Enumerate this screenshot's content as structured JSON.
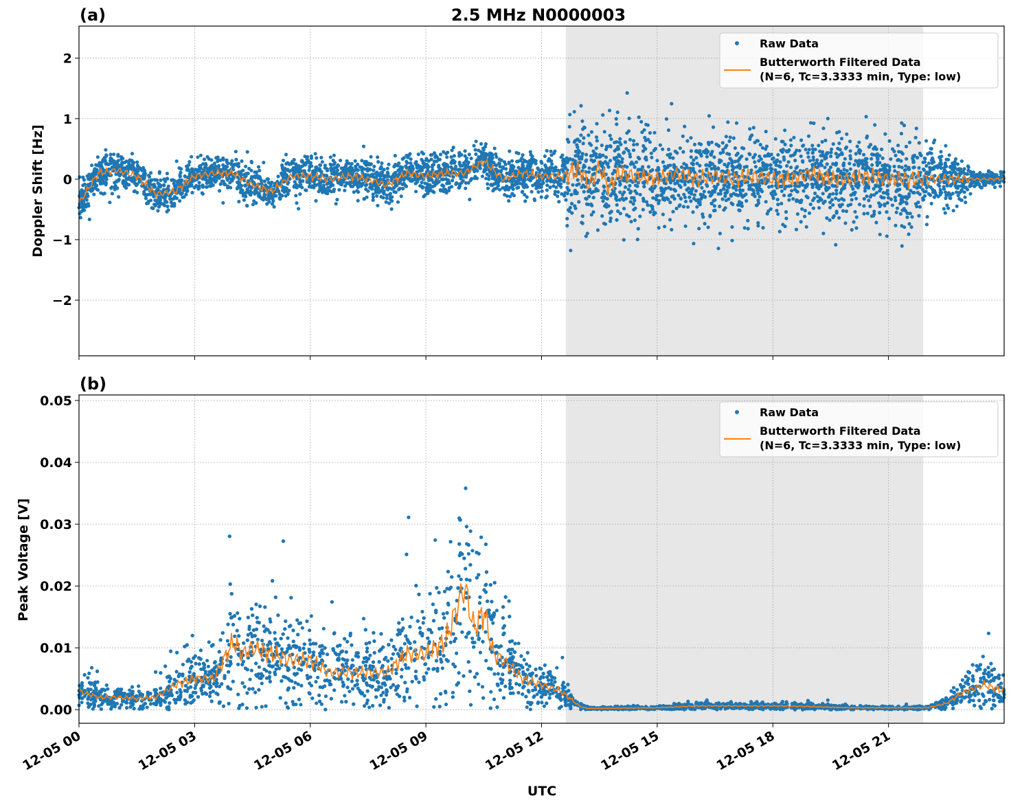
{
  "chart_data": [
    {
      "type": "scatter",
      "panel_label": "(a)",
      "title": "2.5 MHz N0000003",
      "xlabel": "",
      "ylabel": "Doppler Shift [Hz]",
      "xlim_hours": [
        0,
        24
      ],
      "ylim": [
        -2.92,
        2.53
      ],
      "yticks": [
        -2,
        -1,
        0,
        1,
        2
      ],
      "ytick_labels": [
        "−2",
        "−1",
        "0",
        "1",
        "2"
      ],
      "xticks_hours": [
        0,
        3,
        6,
        9,
        12,
        15,
        18,
        21
      ],
      "grid": true,
      "shaded_region_hours": [
        12.63,
        21.9
      ],
      "legend": {
        "placement": "top-right",
        "entries": [
          "Raw Data",
          "Butterworth Filtered Data\n(N=6, Tc=3.3333 min, Type: low)"
        ],
        "line1": "Butterworth Filtered Data",
        "line2": "(N=6, Tc=3.3333 min, Type: low)"
      },
      "series": [
        {
          "name": "Butterworth Filtered Data",
          "color": "#ff7f0e",
          "x": [
            0,
            0.5,
            1,
            1.5,
            2,
            2.5,
            3,
            3.5,
            4,
            4.5,
            5,
            5.5,
            6,
            6.5,
            7,
            7.5,
            8,
            8.5,
            9,
            9.5,
            10,
            10.5,
            11,
            11.5,
            12,
            12.5,
            13,
            13.25,
            13.5,
            13.75,
            14,
            14.5,
            15,
            15.5,
            16,
            16.5,
            17,
            17.5,
            18,
            18.5,
            19,
            19.5,
            20,
            20.5,
            21,
            21.5,
            22,
            22.5,
            23,
            23.5,
            24
          ],
          "y": [
            -0.4,
            0.1,
            0.15,
            0.05,
            -0.25,
            -0.2,
            0.05,
            0.1,
            0.1,
            -0.1,
            -0.2,
            0.05,
            0.05,
            0.0,
            0.05,
            0.0,
            -0.1,
            0.1,
            0.05,
            0.1,
            0.1,
            0.3,
            0.0,
            0.1,
            0.05,
            0.05,
            0.15,
            -0.1,
            0.2,
            -0.15,
            0.1,
            0.05,
            0.0,
            0.1,
            0.0,
            0.05,
            0.0,
            0.05,
            0.0,
            0.0,
            0.1,
            0.0,
            0.0,
            0.05,
            0.0,
            0.0,
            0.0,
            0.0,
            0.0,
            0.0,
            0.0
          ]
        },
        {
          "name": "Raw Data",
          "color": "#1f77b4",
          "spread_x": [
            0,
            12.6,
            12.7,
            15.5,
            15.8,
            22,
            22.2,
            23,
            23.2,
            24
          ],
          "spread_y": [
            0.28,
            0.3,
            0.85,
            0.55,
            0.65,
            0.65,
            0.4,
            0.35,
            0.12,
            0.1
          ]
        }
      ]
    },
    {
      "type": "scatter",
      "panel_label": "(b)",
      "xlabel": "UTC",
      "ylabel": "Peak Voltage [V]",
      "xlim_hours": [
        0,
        24
      ],
      "ylim": [
        -0.0022,
        0.0509
      ],
      "yticks": [
        0,
        0.01,
        0.02,
        0.03,
        0.04,
        0.05
      ],
      "ytick_labels": [
        "0.00",
        "0.01",
        "0.02",
        "0.03",
        "0.04",
        "0.05"
      ],
      "xticks_hours": [
        0,
        3,
        6,
        9,
        12,
        15,
        18,
        21
      ],
      "xtick_labels": [
        "12-05 00",
        "12-05 03",
        "12-05 06",
        "12-05 09",
        "12-05 12",
        "12-05 15",
        "12-05 18",
        "12-05 21"
      ],
      "grid": true,
      "shaded_region_hours": [
        12.63,
        21.9
      ],
      "legend": {
        "placement": "top-right",
        "entries": [
          "Raw Data",
          "Butterworth Filtered Data\n(N=6, Tc=3.3333 min, Type: low)"
        ],
        "line1": "Butterworth Filtered Data",
        "line2": "(N=6, Tc=3.3333 min, Type: low)"
      },
      "series": [
        {
          "name": "Butterworth Filtered Data",
          "color": "#ff7f0e",
          "x": [
            0,
            0.5,
            1,
            1.5,
            2,
            2.5,
            3,
            3.5,
            4,
            4.25,
            4.5,
            5,
            5.5,
            6,
            6.5,
            7,
            7.5,
            8,
            8.5,
            9,
            9.5,
            10,
            10.25,
            10.5,
            10.75,
            11,
            11.5,
            12,
            12.5,
            13,
            13.2,
            15,
            16,
            18,
            19,
            20,
            22,
            22.5,
            23,
            23.5,
            24
          ],
          "y": [
            0.003,
            0.002,
            0.002,
            0.0018,
            0.002,
            0.004,
            0.005,
            0.005,
            0.011,
            0.009,
            0.01,
            0.009,
            0.008,
            0.008,
            0.006,
            0.006,
            0.006,
            0.006,
            0.009,
            0.009,
            0.011,
            0.02,
            0.013,
            0.016,
            0.009,
            0.008,
            0.005,
            0.004,
            0.003,
            0.0005,
            0.0002,
            0.0003,
            0.0006,
            0.0006,
            0.0005,
            0.0003,
            0.0003,
            0.001,
            0.003,
            0.004,
            0.003
          ]
        },
        {
          "name": "Raw Data",
          "color": "#1f77b4",
          "relative_spread": 0.55
        }
      ]
    }
  ]
}
